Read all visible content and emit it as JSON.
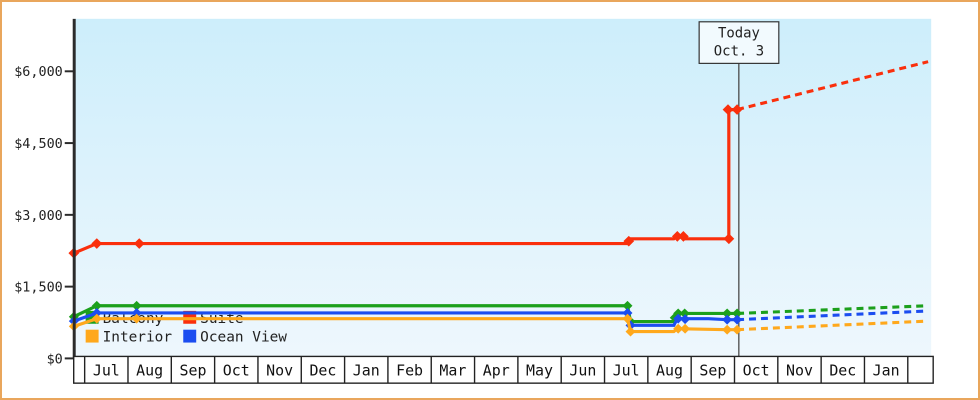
{
  "chart_data": {
    "type": "line",
    "title": "",
    "xlabel": "",
    "ylabel": "",
    "ylim": [
      0,
      7100
    ],
    "grid": false,
    "legend_position": "bottom-left-inside",
    "y_ticks": [
      {
        "label": "$0",
        "value": 0
      },
      {
        "label": "$1,500",
        "value": 1500
      },
      {
        "label": "$3,000",
        "value": 3000
      },
      {
        "label": "$4,500",
        "value": 4500
      },
      {
        "label": "$6,000",
        "value": 6000
      }
    ],
    "months": [
      "Jul",
      "Aug",
      "Sep",
      "Oct",
      "Nov",
      "Dec",
      "Jan",
      "Feb",
      "Mar",
      "Apr",
      "May",
      "Jun",
      "Jul",
      "Aug",
      "Sep",
      "Oct",
      "Nov",
      "Dec",
      "Jan",
      ""
    ],
    "today": {
      "line1": "Today",
      "line2": "Oct. 3",
      "month_frac": 15.1
    },
    "colors": {
      "balcony": "#1ca01c",
      "suite": "#fa2f0c",
      "interior": "#ffa81c",
      "ocean_view": "#1b4df0",
      "plot_bg_top": "#cdeefb",
      "plot_bg_bottom": "#eef7fd",
      "axis": "#2b2b2b",
      "today_line": "#4a4a4a",
      "frame_border": "#e9a65c"
    },
    "legend": [
      {
        "label": "Balcony",
        "color": "#1ca01c",
        "row": 0,
        "col": 0
      },
      {
        "label": "Suite",
        "color": "#fa2f0c",
        "row": 0,
        "col": 1
      },
      {
        "label": "Interior",
        "color": "#ffa81c",
        "row": 1,
        "col": 0
      },
      {
        "label": "Ocean View",
        "color": "#1b4df0",
        "row": 1,
        "col": 1
      }
    ],
    "series": [
      {
        "name": "Suite",
        "key": "suite",
        "color": "#fa2f0c",
        "solid": [
          [
            -0.25,
            2200
          ],
          [
            0.28,
            2400
          ],
          [
            1.26,
            2400
          ],
          [
            12.53,
            2400
          ],
          [
            12.6,
            2500
          ],
          [
            13.6,
            2500
          ],
          [
            13.66,
            2550
          ],
          [
            13.8,
            2550
          ],
          [
            13.86,
            2500
          ],
          [
            14.87,
            2500
          ],
          [
            14.87,
            5200
          ],
          [
            15.06,
            5200
          ]
        ],
        "markers": [
          [
            -0.25,
            2200
          ],
          [
            0.28,
            2400
          ],
          [
            1.26,
            2400
          ],
          [
            12.56,
            2450
          ],
          [
            13.68,
            2550
          ],
          [
            13.82,
            2550
          ],
          [
            14.87,
            2500
          ],
          [
            14.85,
            5200
          ],
          [
            15.06,
            5200
          ]
        ],
        "dashed": [
          [
            15.06,
            5200
          ],
          [
            19.47,
            6200
          ]
        ]
      },
      {
        "name": "Balcony",
        "key": "balcony",
        "color": "#1ca01c",
        "solid": [
          [
            -0.25,
            870
          ],
          [
            0.28,
            1100
          ],
          [
            1.2,
            1100
          ],
          [
            12.53,
            1100
          ],
          [
            12.6,
            770
          ],
          [
            13.58,
            770
          ],
          [
            13.66,
            940
          ],
          [
            15.06,
            940
          ]
        ],
        "markers": [
          [
            -0.25,
            870
          ],
          [
            0.28,
            1100
          ],
          [
            1.2,
            1100
          ],
          [
            12.53,
            1100
          ],
          [
            12.6,
            770
          ],
          [
            13.62,
            850
          ],
          [
            13.7,
            940
          ],
          [
            13.85,
            940
          ],
          [
            14.83,
            940
          ],
          [
            15.06,
            940
          ]
        ],
        "dashed": [
          [
            15.06,
            940
          ],
          [
            19.47,
            1100
          ]
        ]
      },
      {
        "name": "Ocean View",
        "key": "ocean_view",
        "color": "#1b4df0",
        "solid": [
          [
            -0.25,
            780
          ],
          [
            0.28,
            950
          ],
          [
            1.2,
            950
          ],
          [
            12.53,
            950
          ],
          [
            12.6,
            690
          ],
          [
            13.6,
            690
          ],
          [
            13.68,
            830
          ],
          [
            14.4,
            830
          ],
          [
            14.83,
            810
          ],
          [
            15.06,
            810
          ]
        ],
        "markers": [
          [
            -0.25,
            780
          ],
          [
            0.28,
            950
          ],
          [
            1.2,
            950
          ],
          [
            12.53,
            950
          ],
          [
            12.6,
            690
          ],
          [
            13.7,
            830
          ],
          [
            13.86,
            820
          ],
          [
            14.83,
            810
          ],
          [
            15.06,
            810
          ]
        ],
        "dashed": [
          [
            15.06,
            810
          ],
          [
            19.47,
            990
          ]
        ]
      },
      {
        "name": "Interior",
        "key": "interior",
        "color": "#ffa81c",
        "solid": [
          [
            -0.25,
            670
          ],
          [
            0.28,
            830
          ],
          [
            1.2,
            830
          ],
          [
            12.53,
            830
          ],
          [
            12.6,
            560
          ],
          [
            13.6,
            560
          ],
          [
            13.68,
            620
          ],
          [
            14.83,
            600
          ],
          [
            15.06,
            600
          ]
        ],
        "markers": [
          [
            -0.25,
            670
          ],
          [
            0.28,
            830
          ],
          [
            1.2,
            830
          ],
          [
            12.53,
            830
          ],
          [
            12.6,
            560
          ],
          [
            13.7,
            620
          ],
          [
            13.86,
            620
          ],
          [
            14.83,
            600
          ],
          [
            15.06,
            600
          ]
        ],
        "dashed": [
          [
            15.06,
            600
          ],
          [
            19.47,
            780
          ]
        ]
      }
    ]
  }
}
